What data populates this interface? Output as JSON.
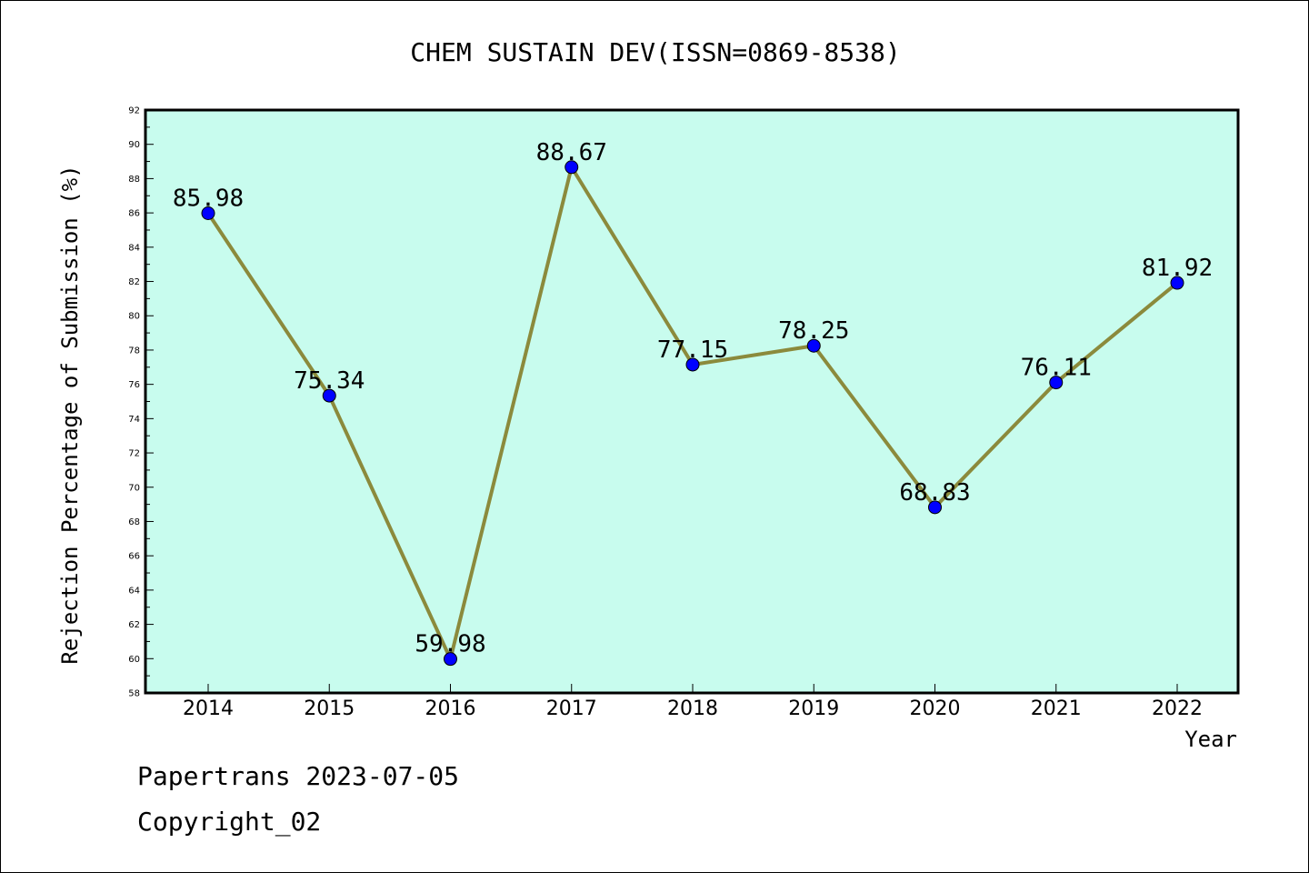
{
  "chart_data": {
    "type": "line",
    "title": "CHEM SUSTAIN DEV(ISSN=0869-8538)",
    "xlabel": "Year",
    "ylabel": "Rejection Percentage of Submission (%)",
    "x": [
      "2014",
      "2015",
      "2016",
      "2017",
      "2018",
      "2019",
      "2020",
      "2021",
      "2022"
    ],
    "series": [
      {
        "values": [
          85.98,
          75.34,
          59.98,
          88.67,
          77.15,
          78.25,
          68.83,
          76.11,
          81.92
        ]
      }
    ],
    "data_labels": [
      "85.98",
      "75.34",
      "59.98",
      "88.67",
      "77.15",
      "78.25",
      "68.83",
      "76.11",
      "81.92"
    ],
    "ylim": [
      58,
      92
    ],
    "y_ticks": [
      "58",
      "60",
      "62",
      "64",
      "66",
      "68",
      "70",
      "72",
      "74",
      "76",
      "78",
      "80",
      "82",
      "84",
      "86",
      "88",
      "90",
      "92"
    ],
    "grid": false,
    "colors": {
      "plot_background": "#c8fcee",
      "line": "#8b8a3c",
      "marker": "#0000ff"
    }
  },
  "footer": {
    "line1": "Papertrans 2023-07-05",
    "line2": "Copyright_02"
  }
}
